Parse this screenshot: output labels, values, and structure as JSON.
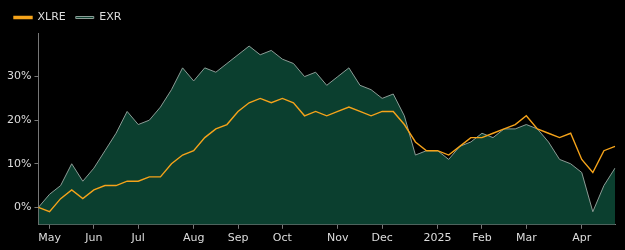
{
  "chart_data": {
    "type": "line",
    "categories": [
      null,
      "May",
      null,
      null,
      null,
      "Jun",
      null,
      null,
      null,
      "Jul",
      null,
      null,
      null,
      null,
      "Aug",
      null,
      null,
      null,
      "Sep",
      null,
      null,
      null,
      "Oct",
      null,
      null,
      null,
      null,
      "Nov",
      null,
      null,
      null,
      "Dec",
      null,
      null,
      null,
      null,
      "2025",
      null,
      null,
      null,
      "Feb",
      null,
      null,
      null,
      "Mar",
      null,
      null,
      null,
      null,
      "Apr",
      null,
      null,
      null
    ],
    "series": [
      {
        "name": "EXR",
        "color": "#8c9c96",
        "values": [
          0,
          3,
          5,
          10,
          6,
          9,
          13,
          17,
          22,
          19,
          20,
          23,
          27,
          32,
          29,
          32,
          31,
          33,
          35,
          37,
          35,
          36,
          34,
          33,
          30,
          31,
          28,
          30,
          32,
          28,
          27,
          25,
          26,
          21,
          12,
          13,
          13,
          11,
          14,
          15,
          17,
          16,
          18,
          18,
          19,
          18,
          15,
          11,
          10,
          8,
          -1,
          5,
          9
        ]
      },
      {
        "name": "XLRE",
        "color": "#f5a31a",
        "values": [
          0,
          -1,
          2,
          4,
          2,
          4,
          5,
          5,
          6,
          6,
          7,
          7,
          10,
          12,
          13,
          16,
          18,
          19,
          22,
          24,
          25,
          24,
          25,
          24,
          21,
          22,
          21,
          22,
          23,
          22,
          21,
          22,
          22,
          19,
          15,
          13,
          13,
          12,
          14,
          16,
          16,
          17,
          18,
          19,
          21,
          18,
          17,
          16,
          17,
          11,
          8,
          13,
          14
        ]
      }
    ],
    "ylim": [
      -4,
      40
    ],
    "yticks": [
      {
        "value": 0,
        "label": "0%"
      },
      {
        "value": 10,
        "label": "10%"
      },
      {
        "value": 20,
        "label": "20%"
      },
      {
        "value": 30,
        "label": "30%"
      }
    ],
    "grid": false,
    "legend": "upper left"
  }
}
